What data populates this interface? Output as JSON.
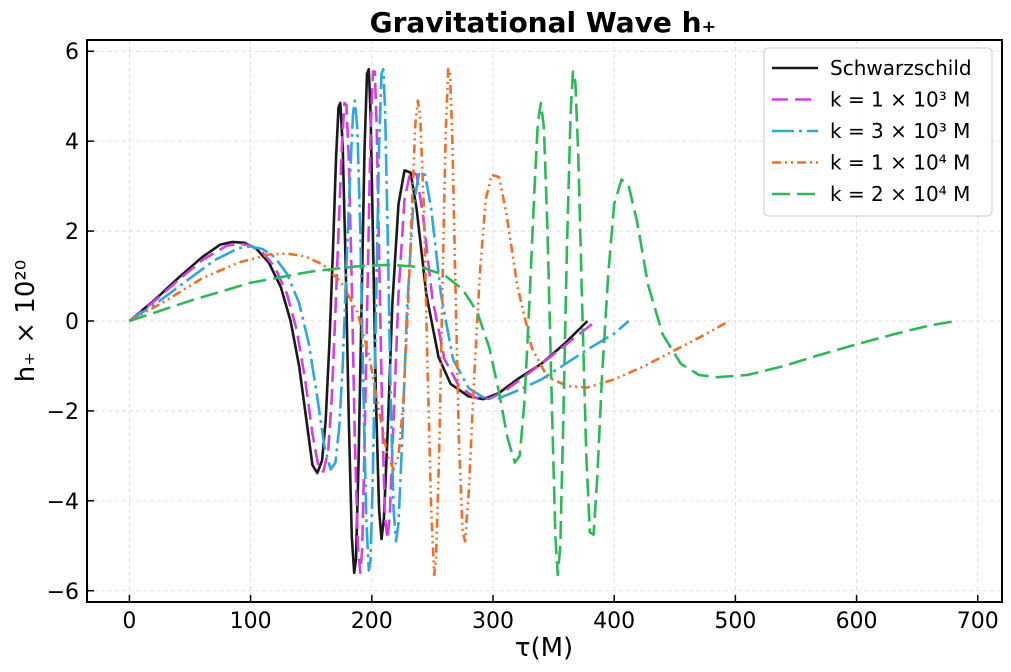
{
  "chart_data": {
    "type": "line",
    "title": "Gravitational Wave h₊",
    "xlabel": "τ(M)",
    "ylabel": "h₊ × 10²⁰",
    "xlim": [
      -35,
      720
    ],
    "ylim": [
      -6.25,
      6.25
    ],
    "xticks": [
      0,
      100,
      200,
      300,
      400,
      500,
      600,
      700
    ],
    "yticks": [
      -6,
      -4,
      -2,
      0,
      2,
      4,
      6
    ],
    "xtick_labels": [
      "0",
      "100",
      "200",
      "300",
      "400",
      "500",
      "600",
      "700"
    ],
    "ytick_labels": [
      "−6",
      "−4",
      "−2",
      "0",
      "2",
      "4",
      "6"
    ],
    "grid": true,
    "legend_position": "top-right",
    "series": [
      {
        "name": "Schwarzschild",
        "color": "#1a1a1a",
        "dash": "solid",
        "points": [
          [
            0,
            0
          ],
          [
            20,
            0.45
          ],
          [
            40,
            0.95
          ],
          [
            60,
            1.42
          ],
          [
            75,
            1.7
          ],
          [
            85,
            1.76
          ],
          [
            95,
            1.74
          ],
          [
            105,
            1.6
          ],
          [
            115,
            1.3
          ],
          [
            125,
            0.75
          ],
          [
            133,
            0
          ],
          [
            140,
            -1.0
          ],
          [
            146,
            -2.2
          ],
          [
            151,
            -3.2
          ],
          [
            155,
            -3.38
          ],
          [
            159,
            -3.1
          ],
          [
            162,
            -2.2
          ],
          [
            165,
            -0.5
          ],
          [
            168,
            1.6
          ],
          [
            170.5,
            3.6
          ],
          [
            172.5,
            4.75
          ],
          [
            174,
            4.85
          ],
          [
            176,
            3.9
          ],
          [
            178.5,
            1.2
          ],
          [
            181,
            -2.2
          ],
          [
            183.5,
            -4.8
          ],
          [
            185.5,
            -5.6
          ],
          [
            187,
            -5.3
          ],
          [
            189,
            -3.2
          ],
          [
            191.5,
            0.3
          ],
          [
            194,
            3.8
          ],
          [
            196,
            5.5
          ],
          [
            197.5,
            5.6
          ],
          [
            199,
            4.6
          ],
          [
            201,
            1.8
          ],
          [
            203.5,
            -1.8
          ],
          [
            206,
            -4.2
          ],
          [
            208,
            -4.85
          ],
          [
            210,
            -4.4
          ],
          [
            213,
            -2.5
          ],
          [
            217,
            0.4
          ],
          [
            222,
            2.6
          ],
          [
            227,
            3.35
          ],
          [
            232,
            3.3
          ],
          [
            237,
            2.5
          ],
          [
            245,
            0.6
          ],
          [
            255,
            -0.8
          ],
          [
            265,
            -1.4
          ],
          [
            280,
            -1.68
          ],
          [
            292,
            -1.74
          ],
          [
            305,
            -1.6
          ],
          [
            320,
            -1.3
          ],
          [
            340,
            -0.95
          ],
          [
            360,
            -0.48
          ],
          [
            378,
            0
          ]
        ]
      },
      {
        "name": "k = 1 × 10³ M",
        "color": "#d43fe0",
        "dash": "16 7",
        "points": [
          [
            0,
            0
          ],
          [
            20,
            0.43
          ],
          [
            40,
            0.9
          ],
          [
            60,
            1.35
          ],
          [
            80,
            1.67
          ],
          [
            90,
            1.72
          ],
          [
            100,
            1.68
          ],
          [
            110,
            1.52
          ],
          [
            120,
            1.2
          ],
          [
            130,
            0.6
          ],
          [
            138,
            -0.2
          ],
          [
            145,
            -1.3
          ],
          [
            151,
            -2.5
          ],
          [
            156,
            -3.25
          ],
          [
            160,
            -3.35
          ],
          [
            164,
            -2.9
          ],
          [
            167,
            -1.7
          ],
          [
            170,
            0.2
          ],
          [
            173,
            2.3
          ],
          [
            175.5,
            4.0
          ],
          [
            177.5,
            4.85
          ],
          [
            179,
            4.8
          ],
          [
            181,
            3.6
          ],
          [
            183.5,
            0.8
          ],
          [
            186,
            -2.6
          ],
          [
            188.5,
            -5.0
          ],
          [
            190.5,
            -5.6
          ],
          [
            192,
            -5.1
          ],
          [
            194,
            -2.8
          ],
          [
            196.5,
            0.8
          ],
          [
            199,
            4.2
          ],
          [
            201,
            5.55
          ],
          [
            202.5,
            5.55
          ],
          [
            204,
            4.4
          ],
          [
            206,
            1.5
          ],
          [
            208.5,
            -2.0
          ],
          [
            211,
            -4.4
          ],
          [
            213,
            -4.85
          ],
          [
            215,
            -4.2
          ],
          [
            218,
            -2.2
          ],
          [
            222,
            0.6
          ],
          [
            227,
            2.7
          ],
          [
            232,
            3.35
          ],
          [
            237,
            3.25
          ],
          [
            242,
            2.4
          ],
          [
            250,
            0.5
          ],
          [
            260,
            -0.85
          ],
          [
            272,
            -1.45
          ],
          [
            285,
            -1.7
          ],
          [
            297,
            -1.73
          ],
          [
            310,
            -1.55
          ],
          [
            325,
            -1.25
          ],
          [
            345,
            -0.85
          ],
          [
            365,
            -0.42
          ],
          [
            385,
            0
          ]
        ]
      },
      {
        "name": "k = 3 × 10³ M",
        "color": "#2ea7e0",
        "dash": "22 5 3 5",
        "points": [
          [
            0,
            0
          ],
          [
            25,
            0.45
          ],
          [
            50,
            0.95
          ],
          [
            70,
            1.35
          ],
          [
            90,
            1.62
          ],
          [
            100,
            1.66
          ],
          [
            110,
            1.6
          ],
          [
            120,
            1.42
          ],
          [
            130,
            1.05
          ],
          [
            140,
            0.4
          ],
          [
            148,
            -0.5
          ],
          [
            155,
            -1.7
          ],
          [
            161,
            -2.8
          ],
          [
            166,
            -3.3
          ],
          [
            170,
            -3.15
          ],
          [
            173,
            -2.4
          ],
          [
            176,
            -1.0
          ],
          [
            179,
            1.2
          ],
          [
            182,
            3.2
          ],
          [
            184.5,
            4.6
          ],
          [
            186,
            4.9
          ],
          [
            188,
            4.3
          ],
          [
            190.5,
            2.0
          ],
          [
            193,
            -1.5
          ],
          [
            195.5,
            -4.4
          ],
          [
            197.5,
            -5.55
          ],
          [
            199,
            -5.3
          ],
          [
            201,
            -3.3
          ],
          [
            203.5,
            0.3
          ],
          [
            206,
            3.9
          ],
          [
            208,
            5.5
          ],
          [
            209.5,
            5.6
          ],
          [
            211,
            4.7
          ],
          [
            213,
            2.0
          ],
          [
            215.5,
            -1.6
          ],
          [
            218,
            -4.2
          ],
          [
            220,
            -4.9
          ],
          [
            222,
            -4.5
          ],
          [
            225,
            -2.7
          ],
          [
            229,
            0.2
          ],
          [
            234,
            2.5
          ],
          [
            239,
            3.3
          ],
          [
            244,
            3.25
          ],
          [
            249,
            2.5
          ],
          [
            257,
            0.6
          ],
          [
            267,
            -0.85
          ],
          [
            280,
            -1.5
          ],
          [
            292,
            -1.7
          ],
          [
            305,
            -1.72
          ],
          [
            320,
            -1.55
          ],
          [
            340,
            -1.3
          ],
          [
            360,
            -0.95
          ],
          [
            380,
            -0.6
          ],
          [
            400,
            -0.28
          ],
          [
            412,
            0
          ]
        ]
      },
      {
        "name": "k = 1 × 10⁴ M",
        "color": "#ef6f2a",
        "dash": "9 4 2 4 2 4",
        "points": [
          [
            0,
            0
          ],
          [
            30,
            0.45
          ],
          [
            60,
            0.95
          ],
          [
            90,
            1.3
          ],
          [
            115,
            1.48
          ],
          [
            130,
            1.5
          ],
          [
            145,
            1.44
          ],
          [
            160,
            1.25
          ],
          [
            175,
            0.85
          ],
          [
            188,
            0.2
          ],
          [
            198,
            -0.8
          ],
          [
            206,
            -2.0
          ],
          [
            213,
            -3.0
          ],
          [
            218,
            -3.3
          ],
          [
            222,
            -3.0
          ],
          [
            226,
            -1.8
          ],
          [
            230,
            0.4
          ],
          [
            233.5,
            2.8
          ],
          [
            236,
            4.4
          ],
          [
            238,
            4.9
          ],
          [
            240,
            4.5
          ],
          [
            243,
            2.5
          ],
          [
            246,
            -1.0
          ],
          [
            249,
            -4.2
          ],
          [
            251.5,
            -5.65
          ],
          [
            253,
            -5.3
          ],
          [
            255.5,
            -3.0
          ],
          [
            258.5,
            1.0
          ],
          [
            261,
            4.2
          ],
          [
            263,
            5.6
          ],
          [
            264.5,
            5.55
          ],
          [
            266.5,
            4.0
          ],
          [
            269,
            0.8
          ],
          [
            272,
            -2.8
          ],
          [
            275,
            -4.7
          ],
          [
            277,
            -4.9
          ],
          [
            280,
            -3.8
          ],
          [
            284,
            -1.5
          ],
          [
            289,
            1.0
          ],
          [
            294,
            2.7
          ],
          [
            299,
            3.25
          ],
          [
            305,
            3.2
          ],
          [
            311,
            2.4
          ],
          [
            320,
            0.8
          ],
          [
            332,
            -0.6
          ],
          [
            345,
            -1.25
          ],
          [
            362,
            -1.45
          ],
          [
            378,
            -1.48
          ],
          [
            400,
            -1.3
          ],
          [
            425,
            -1.0
          ],
          [
            450,
            -0.65
          ],
          [
            475,
            -0.3
          ],
          [
            495,
            0
          ]
        ]
      },
      {
        "name": "k = 2 × 10⁴ M",
        "color": "#2db85a",
        "dash": "18 7",
        "points": [
          [
            0,
            0
          ],
          [
            50,
            0.45
          ],
          [
            100,
            0.85
          ],
          [
            150,
            1.1
          ],
          [
            190,
            1.22
          ],
          [
            215,
            1.25
          ],
          [
            240,
            1.2
          ],
          [
            260,
            1.02
          ],
          [
            275,
            0.7
          ],
          [
            287,
            0.2
          ],
          [
            297,
            -0.6
          ],
          [
            305,
            -1.6
          ],
          [
            312,
            -2.6
          ],
          [
            318,
            -3.15
          ],
          [
            322,
            -3.0
          ],
          [
            326,
            -1.8
          ],
          [
            330,
            0.4
          ],
          [
            334,
            2.8
          ],
          [
            337,
            4.4
          ],
          [
            339.5,
            4.85
          ],
          [
            342,
            4.3
          ],
          [
            345,
            2.0
          ],
          [
            348.5,
            -1.8
          ],
          [
            351.5,
            -4.8
          ],
          [
            353.5,
            -5.65
          ],
          [
            355.5,
            -5.0
          ],
          [
            358,
            -2.2
          ],
          [
            361,
            1.6
          ],
          [
            364,
            4.6
          ],
          [
            366,
            5.55
          ],
          [
            368,
            5.3
          ],
          [
            370.5,
            3.6
          ],
          [
            373.5,
            0.4
          ],
          [
            377,
            -3.0
          ],
          [
            380,
            -4.7
          ],
          [
            383,
            -4.75
          ],
          [
            386,
            -3.5
          ],
          [
            390,
            -1.2
          ],
          [
            395,
            1.0
          ],
          [
            400,
            2.6
          ],
          [
            406,
            3.15
          ],
          [
            412,
            3.0
          ],
          [
            419,
            2.2
          ],
          [
            428,
            0.8
          ],
          [
            440,
            -0.3
          ],
          [
            455,
            -0.95
          ],
          [
            470,
            -1.2
          ],
          [
            485,
            -1.25
          ],
          [
            510,
            -1.2
          ],
          [
            540,
            -1.0
          ],
          [
            570,
            -0.75
          ],
          [
            600,
            -0.52
          ],
          [
            630,
            -0.3
          ],
          [
            660,
            -0.1
          ],
          [
            682,
            0
          ]
        ]
      }
    ]
  }
}
